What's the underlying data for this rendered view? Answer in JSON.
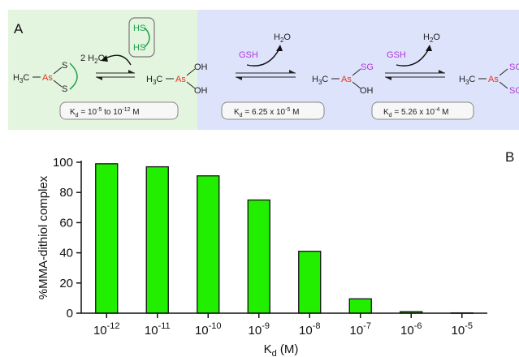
{
  "panels": {
    "a_label": "A",
    "b_label": "B"
  },
  "scheme": {
    "colors": {
      "green_panel": "#e3f5df",
      "blue_panel": "#dde3fb",
      "arsenic": "#e8341c",
      "thiol": "#1e9e4a",
      "glutathione": "#b03ad8"
    },
    "step1": {
      "water": "2 H",
      "water_sub": "2",
      "water_tail": "O",
      "reagent_top": "HS",
      "reagent_bottom": "HS",
      "kd_prefix": "K",
      "kd_sub": "d",
      "kd_text": " = 10",
      "kd_exp1": "-5",
      "kd_mid": " to 10",
      "kd_exp2": "-12",
      "kd_unit": " M"
    },
    "step2": {
      "reagent": "GSH",
      "water": "H",
      "water_sub": "2",
      "water_tail": "O",
      "kd_prefix": "K",
      "kd_sub": "d",
      "kd_text": " = 6.25 x 10",
      "kd_exp": "-5",
      "kd_unit": " M"
    },
    "step3": {
      "reagent": "GSH",
      "water": "H",
      "water_sub": "2",
      "water_tail": "O",
      "kd_prefix": "K",
      "kd_sub": "d",
      "kd_text": " = 5.26 x 10",
      "kd_exp": "-4",
      "kd_unit": " M"
    },
    "molecules": {
      "methyl": "H",
      "methyl_sub": "3",
      "methyl_tail": "C",
      "arsenic": "As",
      "sulfur": "S",
      "hydroxyl": "OH",
      "sg": "SG"
    }
  },
  "chart_data": {
    "type": "bar",
    "categories": [
      "10-12",
      "10-11",
      "10-10",
      "10-9",
      "10-8",
      "10-7",
      "10-6",
      "10-5"
    ],
    "category_exponents": [
      "-12",
      "-11",
      "-10",
      "-9",
      "-8",
      "-7",
      "-6",
      "-5"
    ],
    "category_base": "10",
    "values": [
      99,
      97,
      91,
      75,
      41,
      9.5,
      1,
      0.2
    ],
    "ylabel": "%MMA-dithiol complex",
    "xlabel_main": "K",
    "xlabel_sub": "d",
    "xlabel_unit": " (M)",
    "ylim": [
      0,
      100
    ],
    "yticks": [
      0,
      20,
      40,
      60,
      80,
      100
    ],
    "bar_color": "#22ee00",
    "grid": false
  }
}
